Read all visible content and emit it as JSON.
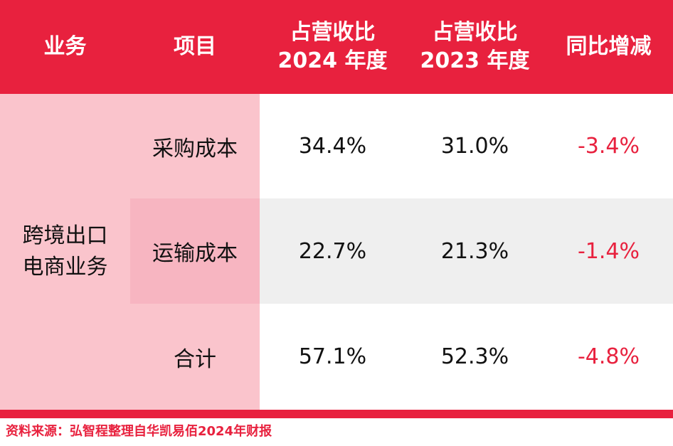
{
  "header": {
    "business": "业务",
    "item": "项目",
    "ratio_2024_line1": "占营收比",
    "ratio_2024_line2": "2024 年度",
    "ratio_2023_line1": "占营收比",
    "ratio_2023_line2": "2023 年度",
    "yoy": "同比增减"
  },
  "business": {
    "line1": "跨境出口",
    "line2": "电商业务"
  },
  "rows": [
    {
      "item": "采购成本",
      "v2024": "34.4%",
      "v2023": "31.0%",
      "yoy": "-3.4%"
    },
    {
      "item": "运输成本",
      "v2024": "22.7%",
      "v2023": "21.3%",
      "yoy": "-1.4%"
    },
    {
      "item": "合计",
      "v2024": "57.1%",
      "v2023": "52.3%",
      "yoy": "-4.8%"
    }
  ],
  "source": "资料来源：弘智程整理自华凯易佰2024年财报",
  "colors": {
    "accent": "#e8213e",
    "business_bg": "#fac4cc",
    "item_highlight": "#f7b5c1",
    "row_stripe": "#efefef"
  }
}
